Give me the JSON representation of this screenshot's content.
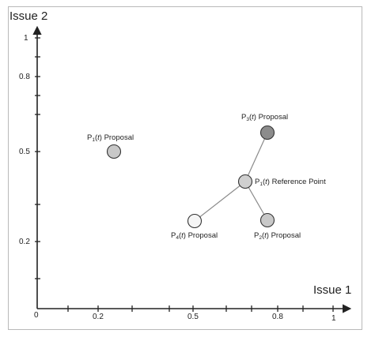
{
  "axes": {
    "x_title": "Issue 1",
    "y_title": "Issue 2",
    "origin_label": "0",
    "x_tick_labels": [
      "0.2",
      "0.5",
      "0.8",
      "1"
    ],
    "y_tick_labels": [
      "1",
      "0.8",
      "0.5",
      "0.2"
    ]
  },
  "points": {
    "p1_proposal": {
      "prefix": "P",
      "sub": "1",
      "arg": "t",
      "suffix": " Proposal",
      "fill": "#c8c8c8"
    },
    "p3_proposal": {
      "prefix": "P",
      "sub": "3",
      "arg": "t",
      "suffix": " Proposal",
      "fill": "#8c8c8c"
    },
    "p1_reference": {
      "prefix": "P",
      "sub": "1",
      "arg": "t",
      "suffix": " Reference Point",
      "fill": "#cfcfcf"
    },
    "p4_proposal": {
      "prefix": "P",
      "sub": "4",
      "arg": "t",
      "suffix": " Proposal",
      "fill": "#f5f5f5"
    },
    "p2_proposal": {
      "prefix": "P",
      "sub": "2",
      "arg": "t",
      "suffix": " Proposal",
      "fill": "#c8c8c8"
    }
  },
  "colors": {
    "axis": "#222222",
    "connector": "#8a8a8a",
    "frame": "#b9b9b9"
  }
}
